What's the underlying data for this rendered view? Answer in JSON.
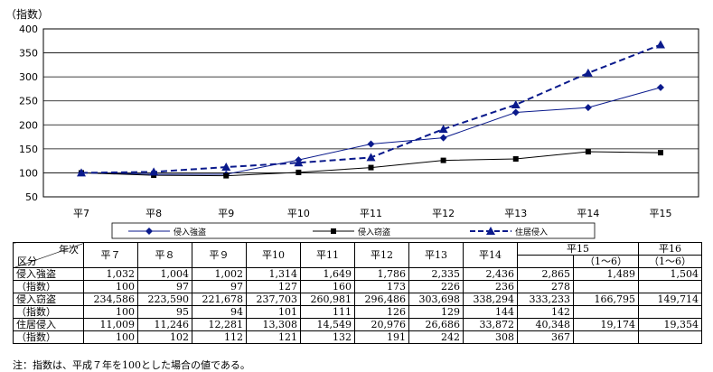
{
  "chart_data": {
    "type": "line",
    "yunit": "（指数）",
    "categories": [
      "平7",
      "平8",
      "平9",
      "平10",
      "平11",
      "平12",
      "平13",
      "平14",
      "平15"
    ],
    "ylim": [
      50,
      400
    ],
    "yticks": [
      50,
      100,
      150,
      200,
      250,
      300,
      350,
      400
    ],
    "series": [
      {
        "name": "侵入強盗",
        "values": [
          100,
          97,
          97,
          127,
          160,
          173,
          226,
          236,
          278
        ],
        "color": "#0a1a8c",
        "marker": "diamond",
        "dash": false
      },
      {
        "name": "侵入窃盗",
        "values": [
          100,
          95,
          94,
          101,
          111,
          126,
          129,
          144,
          142
        ],
        "color": "#000000",
        "marker": "square",
        "dash": false
      },
      {
        "name": "住居侵入",
        "values": [
          100,
          102,
          112,
          121,
          132,
          191,
          242,
          308,
          367
        ],
        "color": "#0a1a8c",
        "marker": "triangle",
        "dash": true
      }
    ],
    "legend_placement": "bottom",
    "grid": true
  },
  "table": {
    "corner_top": "年次",
    "corner_bottom": "区分",
    "years": [
      "平７",
      "平８",
      "平９",
      "平10",
      "平11",
      "平12",
      "平13",
      "平14"
    ],
    "h15": "平15",
    "h15_sub": "（1～6）",
    "h16": "平16",
    "h16_sub": "（1～6）",
    "rows": [
      {
        "label": "侵入強盗",
        "vals": [
          "1,032",
          "1,004",
          "1,002",
          "1,314",
          "1,649",
          "1,786",
          "2,335",
          "2,436",
          "2,865",
          "1,489",
          "1,504"
        ]
      },
      {
        "label": "（指数）",
        "vals": [
          "100",
          "97",
          "97",
          "127",
          "160",
          "173",
          "226",
          "236",
          "278",
          "",
          ""
        ]
      },
      {
        "label": "侵入窃盗",
        "vals": [
          "234,586",
          "223,590",
          "221,678",
          "237,703",
          "260,981",
          "296,486",
          "303,698",
          "338,294",
          "333,233",
          "166,795",
          "149,714"
        ]
      },
      {
        "label": "（指数）",
        "vals": [
          "100",
          "95",
          "94",
          "101",
          "111",
          "126",
          "129",
          "144",
          "142",
          "",
          ""
        ]
      },
      {
        "label": "住居侵入",
        "vals": [
          "11,009",
          "11,246",
          "12,281",
          "13,308",
          "14,549",
          "20,976",
          "26,686",
          "33,872",
          "40,348",
          "19,174",
          "19,354"
        ]
      },
      {
        "label": "（指数）",
        "vals": [
          "100",
          "102",
          "112",
          "121",
          "132",
          "191",
          "242",
          "308",
          "367",
          "",
          ""
        ]
      }
    ]
  },
  "note": "注：指数は、平成７年を100とした場合の値である。"
}
